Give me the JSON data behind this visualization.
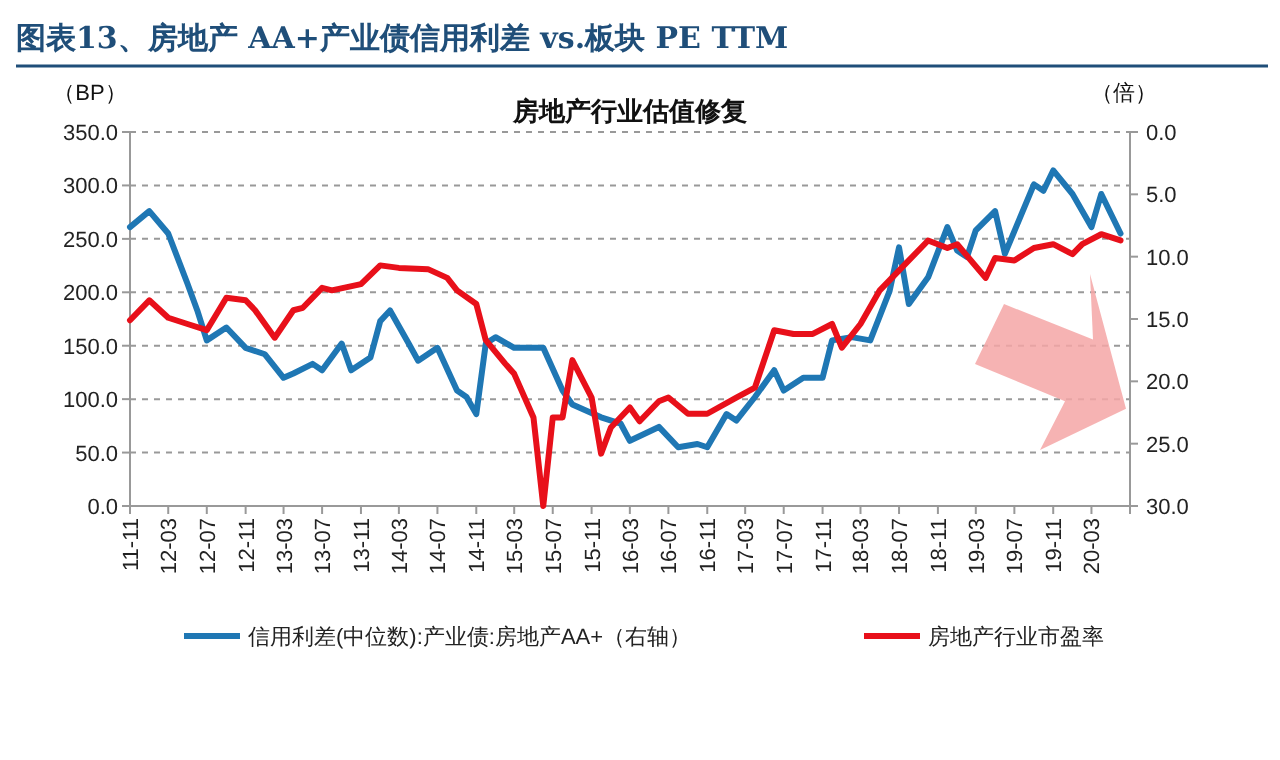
{
  "chart_data": {
    "type": "line",
    "title": "图表13、房地产 AA+产业债信用利差 vs.板块 PE TTM",
    "subtitle": "房地产行业估值修复",
    "ylabel": "（BP）",
    "y2label": "（倍）",
    "xlim": [
      "2011-11",
      "2020-07"
    ],
    "xticks": [
      {
        "value": "2011-11",
        "label": "11-11"
      },
      {
        "value": "2012-03",
        "label": "12-03"
      },
      {
        "value": "2012-07",
        "label": "12-07"
      },
      {
        "value": "2012-11",
        "label": "12-11"
      },
      {
        "value": "2013-03",
        "label": "13-03"
      },
      {
        "value": "2013-07",
        "label": "13-07"
      },
      {
        "value": "2013-11",
        "label": "13-11"
      },
      {
        "value": "2014-03",
        "label": "14-03"
      },
      {
        "value": "2014-07",
        "label": "14-07"
      },
      {
        "value": "2014-11",
        "label": "14-11"
      },
      {
        "value": "2015-03",
        "label": "15-03"
      },
      {
        "value": "2015-07",
        "label": "15-07"
      },
      {
        "value": "2015-11",
        "label": "15-11"
      },
      {
        "value": "2016-03",
        "label": "16-03"
      },
      {
        "value": "2016-07",
        "label": "16-07"
      },
      {
        "value": "2016-11",
        "label": "16-11"
      },
      {
        "value": "2017-03",
        "label": "17-03"
      },
      {
        "value": "2017-07",
        "label": "17-07"
      },
      {
        "value": "2017-11",
        "label": "17-11"
      },
      {
        "value": "2018-03",
        "label": "18-03"
      },
      {
        "value": "2018-07",
        "label": "18-07"
      },
      {
        "value": "2018-11",
        "label": "18-11"
      },
      {
        "value": "2019-03",
        "label": "19-03"
      },
      {
        "value": "2019-07",
        "label": "19-07"
      },
      {
        "value": "2019-11",
        "label": "19-11"
      },
      {
        "value": "2020-03",
        "label": "20-03"
      },
      {
        "value": "2020-07",
        "label": null
      }
    ],
    "ylim": [
      0,
      350
    ],
    "yticks": [
      {
        "value": 0,
        "label": "0.0"
      },
      {
        "value": 50,
        "label": "50.0"
      },
      {
        "value": 100,
        "label": "100.0"
      },
      {
        "value": 150,
        "label": "150.0"
      },
      {
        "value": 200,
        "label": "200.0"
      },
      {
        "value": 250,
        "label": "250.0"
      },
      {
        "value": 300,
        "label": "300.0"
      },
      {
        "value": 350,
        "label": "350.0"
      }
    ],
    "y2lim": [
      30,
      0
    ],
    "y2ticks": [
      {
        "value": 0,
        "label": "0.0"
      },
      {
        "value": 5,
        "label": "5.0"
      },
      {
        "value": 10,
        "label": "10.0"
      },
      {
        "value": 15,
        "label": "15.0"
      },
      {
        "value": 20,
        "label": "20.0"
      },
      {
        "value": 25,
        "label": "25.0"
      },
      {
        "value": 30,
        "label": "30.0"
      }
    ],
    "grid": "y",
    "legend": "bottom",
    "line_style": "solid",
    "marker": "none",
    "series": [
      {
        "name": "信用利差(中位数):产业债:房地产AA+（右轴）",
        "color": "#1f77b4",
        "x": [
          "2011-11",
          "2012-01",
          "2012-03",
          "2012-05",
          "2012-06",
          "2012-07",
          "2012-09",
          "2012-11",
          "2013-01",
          "2013-03",
          "2013-04",
          "2013-06",
          "2013-07",
          "2013-09",
          "2013-10",
          "2013-12",
          "2014-01",
          "2014-02",
          "2014-04",
          "2014-05",
          "2014-07",
          "2014-09",
          "2014-10",
          "2014-11",
          "2014-12",
          "2015-01",
          "2015-03",
          "2015-06",
          "2015-08",
          "2015-09",
          "2015-12",
          "2016-02",
          "2016-03",
          "2016-06",
          "2016-08",
          "2016-10",
          "2016-11",
          "2017-01",
          "2017-02",
          "2017-04",
          "2017-06",
          "2017-07",
          "2017-09",
          "2017-11",
          "2017-12",
          "2018-02",
          "2018-04",
          "2018-06",
          "2018-07",
          "2018-08",
          "2018-10",
          "2018-12",
          "2019-01",
          "2019-02",
          "2019-03",
          "2019-05",
          "2019-06",
          "2019-09",
          "2019-10",
          "2019-11",
          "2020-01",
          "2020-03",
          "2020-04",
          "2020-06"
        ],
        "values": [
          261,
          276,
          255,
          208,
          183,
          155,
          167,
          148,
          142,
          120,
          124,
          133,
          127,
          152,
          127,
          139,
          173,
          183,
          152,
          136,
          148,
          108,
          102,
          86,
          152,
          158,
          148,
          148,
          108,
          95,
          83,
          77,
          61,
          74,
          55,
          58,
          55,
          86,
          80,
          102,
          127,
          108,
          120,
          120,
          155,
          158,
          155,
          201,
          242,
          189,
          214,
          261,
          239,
          233,
          258,
          276,
          236,
          301,
          295,
          314,
          292,
          261,
          292,
          255
        ]
      },
      {
        "name": "房地产行业市盈率",
        "color": "#e8101a",
        "axis": "y2",
        "x": [
          "2011-11",
          "2012-01",
          "2012-03",
          "2012-05",
          "2012-07",
          "2012-09",
          "2012-11",
          "2012-12",
          "2013-02",
          "2013-04",
          "2013-05",
          "2013-07",
          "2013-08",
          "2013-11",
          "2014-01",
          "2014-03",
          "2014-06",
          "2014-08",
          "2014-09",
          "2014-11",
          "2014-12",
          "2015-02",
          "2015-03",
          "2015-05",
          "2015-06",
          "2015-07",
          "2015-08",
          "2015-09",
          "2015-11",
          "2015-12",
          "2016-01",
          "2016-03",
          "2016-04",
          "2016-06",
          "2016-07",
          "2016-09",
          "2016-11",
          "2017-02",
          "2017-04",
          "2017-06",
          "2017-08",
          "2017-10",
          "2017-12",
          "2018-01",
          "2018-03",
          "2018-05",
          "2018-08",
          "2018-10",
          "2018-12",
          "2019-01",
          "2019-04",
          "2019-05",
          "2019-07",
          "2019-09",
          "2019-11",
          "2020-01",
          "2020-02",
          "2020-04",
          "2020-06"
        ],
        "values": [
          15.1,
          13.5,
          14.9,
          15.4,
          15.9,
          13.3,
          13.5,
          14.3,
          16.5,
          14.3,
          14.1,
          12.5,
          12.7,
          12.2,
          10.7,
          10.9,
          11.0,
          11.7,
          12.7,
          13.8,
          16.7,
          18.6,
          19.4,
          22.9,
          30.0,
          22.9,
          22.9,
          18.3,
          21.3,
          25.8,
          23.7,
          22.1,
          23.2,
          21.6,
          21.3,
          22.6,
          22.6,
          21.3,
          20.5,
          15.9,
          16.2,
          16.2,
          15.4,
          17.3,
          15.4,
          12.7,
          10.3,
          8.7,
          9.3,
          9.0,
          11.7,
          10.1,
          10.3,
          9.3,
          9.0,
          9.8,
          9.0,
          8.2,
          8.7
        ]
      }
    ]
  }
}
